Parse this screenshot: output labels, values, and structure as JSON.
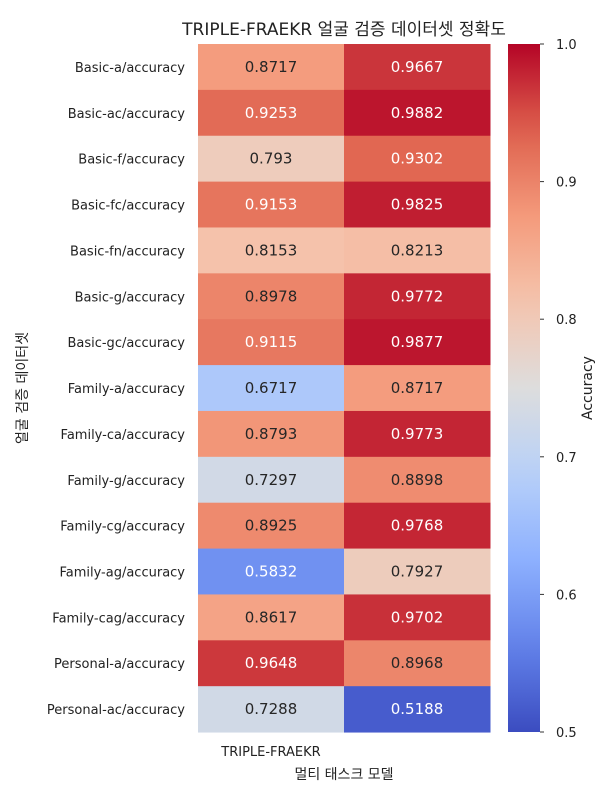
{
  "chart_data": {
    "type": "heatmap",
    "title": "TRIPLE-FRAEKR 얼굴 검증 데이터셋 정확도",
    "xlabel": "멀티 태스크 모델",
    "ylabel": "얼굴 검증 데이터셋",
    "x_tick_labels": [
      "TRIPLE-FRAEKR",
      ""
    ],
    "rows": [
      "Basic-a/accuracy",
      "Basic-ac/accuracy",
      "Basic-f/accuracy",
      "Basic-fc/accuracy",
      "Basic-fn/accuracy",
      "Basic-g/accuracy",
      "Basic-gc/accuracy",
      "Family-a/accuracy",
      "Family-ca/accuracy",
      "Family-g/accuracy",
      "Family-cg/accuracy",
      "Family-ag/accuracy",
      "Family-cag/accuracy",
      "Personal-a/accuracy",
      "Personal-ac/accuracy"
    ],
    "values": [
      [
        0.8717,
        0.9667
      ],
      [
        0.9253,
        0.9882
      ],
      [
        0.793,
        0.9302
      ],
      [
        0.9153,
        0.9825
      ],
      [
        0.8153,
        0.8213
      ],
      [
        0.8978,
        0.9772
      ],
      [
        0.9115,
        0.9877
      ],
      [
        0.6717,
        0.8717
      ],
      [
        0.8793,
        0.9773
      ],
      [
        0.7297,
        0.8898
      ],
      [
        0.8925,
        0.9768
      ],
      [
        0.5832,
        0.7927
      ],
      [
        0.8617,
        0.9702
      ],
      [
        0.9648,
        0.8968
      ],
      [
        0.7288,
        0.5188
      ]
    ],
    "value_labels": [
      [
        "0.8717",
        "0.9667"
      ],
      [
        "0.9253",
        "0.9882"
      ],
      [
        "0.793",
        "0.9302"
      ],
      [
        "0.9153",
        "0.9825"
      ],
      [
        "0.8153",
        "0.8213"
      ],
      [
        "0.8978",
        "0.9772"
      ],
      [
        "0.9115",
        "0.9877"
      ],
      [
        "0.6717",
        "0.8717"
      ],
      [
        "0.8793",
        "0.9773"
      ],
      [
        "0.7297",
        "0.8898"
      ],
      [
        "0.8925",
        "0.9768"
      ],
      [
        "0.5832",
        "0.7927"
      ],
      [
        "0.8617",
        "0.9702"
      ],
      [
        "0.9648",
        "0.8968"
      ],
      [
        "0.7288",
        "0.5188"
      ]
    ],
    "colormap": "coolwarm",
    "vmin": 0.5,
    "vmax": 1.0,
    "colorbar": {
      "label": "Accuracy",
      "ticks": [
        0.5,
        0.6,
        0.7,
        0.8,
        0.9,
        1.0
      ],
      "tick_labels": [
        "0.5",
        "0.6",
        "0.7",
        "0.8",
        "0.9",
        "1.0"
      ]
    },
    "grid": false,
    "legend": "colorbar-right"
  }
}
